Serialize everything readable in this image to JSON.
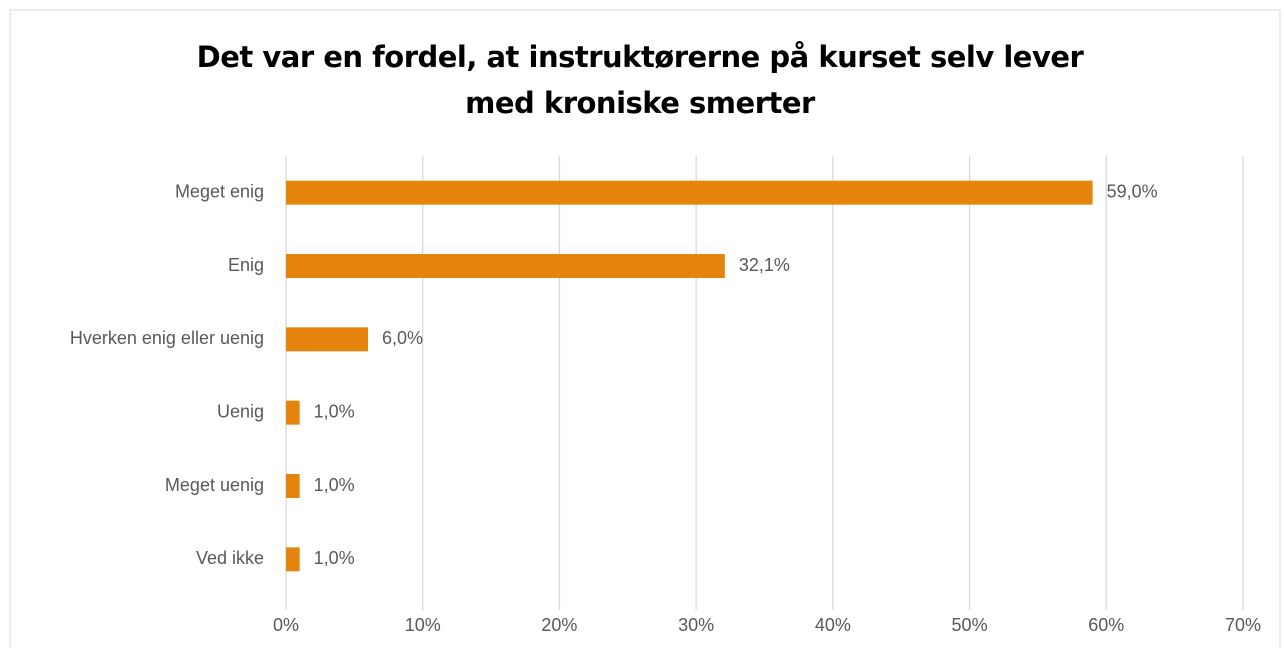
{
  "chart_data": {
    "type": "bar",
    "orientation": "horizontal",
    "title": "Det var en fordel, at instruktørerne på kurset selv lever med kroniske smerter",
    "categories": [
      "Meget enig",
      "Enig",
      "Hverken enig eller uenig",
      "Uenig",
      "Meget uenig",
      "Ved ikke"
    ],
    "values": [
      59.0,
      32.1,
      6.0,
      1.0,
      1.0,
      1.0
    ],
    "value_labels": [
      "59,0%",
      "32,1%",
      "6,0%",
      "1,0%",
      "1,0%",
      "1,0%"
    ],
    "color": "#e6850e",
    "xlim": [
      0,
      70
    ],
    "xticks": [
      {
        "value": 0,
        "label": "0%"
      },
      {
        "value": 10,
        "label": "10%"
      },
      {
        "value": 20,
        "label": "20%"
      },
      {
        "value": 30,
        "label": "30%"
      },
      {
        "value": 40,
        "label": "40%"
      },
      {
        "value": 50,
        "label": "50%"
      },
      {
        "value": 60,
        "label": "60%"
      },
      {
        "value": 70,
        "label": "70%"
      }
    ],
    "grid": true
  }
}
